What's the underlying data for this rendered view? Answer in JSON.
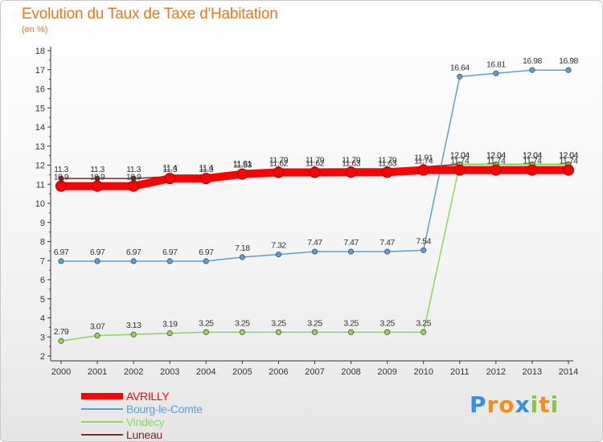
{
  "chart_data": {
    "type": "line",
    "title": "Evolution du Taux de Taxe d'Habitation",
    "ylabel": "(en %)",
    "xlabel": "",
    "categories": [
      "2000",
      "2001",
      "2002",
      "2003",
      "2004",
      "2005",
      "2006",
      "2007",
      "2008",
      "2009",
      "2010",
      "2011",
      "2012",
      "2013",
      "2014"
    ],
    "ylim": [
      2,
      18
    ],
    "yticks": [
      "2",
      "3",
      "4",
      "5",
      "6",
      "7",
      "8",
      "9",
      "10",
      "11",
      "12",
      "13",
      "14",
      "15",
      "16",
      "17",
      "18"
    ],
    "grid": false,
    "legend_position": "bottom-left",
    "series": [
      {
        "name": "Luneau",
        "color": "#7a2a2a",
        "values": [
          11.3,
          11.3,
          11.3,
          11.4,
          11.4,
          11.61,
          11.79,
          11.79,
          11.79,
          11.79,
          11.91,
          12.04,
          12.04,
          12.04,
          12.04
        ],
        "labels": [
          "11.3",
          "11.3",
          "11.3",
          "11.4",
          "11.4",
          "11.61",
          "11.79",
          "11.79",
          "11.79",
          "11.79",
          "11.91",
          "12.04",
          "12.04",
          "12.04",
          "12.04"
        ]
      },
      {
        "name": "Vindecy",
        "color": "#8fd65a",
        "values": [
          2.79,
          3.07,
          3.13,
          3.19,
          3.25,
          3.25,
          3.25,
          3.25,
          3.25,
          3.25,
          3.25,
          12.04,
          12.04,
          12.04,
          12.04
        ],
        "labels": [
          "2.79",
          "3.07",
          "3.13",
          "3.19",
          "3.25",
          "3.25",
          "3.25",
          "3.25",
          "3.25",
          "3.25",
          "3.25",
          "12.04",
          "12.04",
          "12.04",
          "12.04"
        ]
      },
      {
        "name": "Bourg-le-Comte",
        "color": "#5c9fd6",
        "values": [
          6.97,
          6.97,
          6.97,
          6.97,
          6.97,
          7.18,
          7.32,
          7.47,
          7.47,
          7.47,
          7.54,
          16.64,
          16.81,
          16.98,
          16.98
        ],
        "labels": [
          "6.97",
          "6.97",
          "6.97",
          "6.97",
          "6.97",
          "7.18",
          "7.32",
          "7.47",
          "7.47",
          "7.47",
          "7.54",
          "16.64",
          "16.81",
          "16.98",
          "16.98"
        ]
      },
      {
        "name": "AVRILLY",
        "color": "#ff0000",
        "values": [
          10.9,
          10.9,
          10.9,
          11.3,
          11.3,
          11.53,
          11.62,
          11.62,
          11.63,
          11.63,
          11.74,
          11.74,
          11.74,
          11.74,
          11.74
        ],
        "labels": [
          "10.9",
          "10.9",
          "10.9",
          "11.3",
          "11.3",
          "11.53",
          "11.62",
          "11.62",
          "11.63",
          "11.63",
          "11.74",
          "11.74",
          "11.74",
          "11.74",
          "11.74"
        ]
      }
    ]
  },
  "legend": [
    {
      "label": "AVRILLY",
      "color": "#ff0000",
      "line": "thick"
    },
    {
      "label": "Bourg-le-Comte",
      "color": "#5c9fd6",
      "line": "thin"
    },
    {
      "label": "Vindecy",
      "color": "#8fd65a",
      "line": "thin"
    },
    {
      "label": "Luneau",
      "color": "#7a2a2a",
      "line": "thin"
    }
  ],
  "brand": {
    "letters": [
      "P",
      "r",
      "o",
      "x",
      "i",
      "t",
      "i"
    ],
    "colors": [
      "#3a8fd9",
      "#f28c1a",
      "#f28c1a",
      "#3a8fd9",
      "#8cc63f",
      "#f28c1a",
      "#8cc63f"
    ]
  }
}
